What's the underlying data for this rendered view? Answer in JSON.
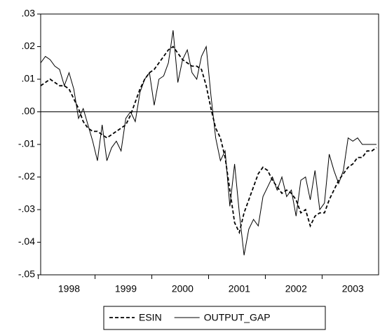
{
  "chart_data": {
    "type": "line",
    "categories": [
      null,
      null,
      null,
      null,
      null,
      null,
      "1998",
      null,
      null,
      null,
      null,
      null,
      null,
      null,
      null,
      null,
      null,
      null,
      "1999",
      null,
      null,
      null,
      null,
      null,
      null,
      null,
      null,
      null,
      null,
      null,
      "2000",
      null,
      null,
      null,
      null,
      null,
      null,
      null,
      null,
      null,
      null,
      null,
      "2001",
      null,
      null,
      null,
      null,
      null,
      null,
      null,
      null,
      null,
      null,
      null,
      "2002",
      null,
      null,
      null,
      null,
      null,
      null,
      null,
      null,
      null,
      null,
      null,
      "2003",
      null,
      null,
      null,
      null,
      null
    ],
    "series": [
      {
        "name": "ESIN",
        "color": "#000000",
        "dash": "dashed",
        "values": [
          0.008,
          0.009,
          0.01,
          0.009,
          0.008,
          0.008,
          0.007,
          0.004,
          0.001,
          -0.003,
          -0.005,
          -0.006,
          -0.006,
          -0.007,
          -0.008,
          -0.007,
          -0.006,
          -0.005,
          -0.004,
          -0.001,
          0.003,
          0.007,
          0.01,
          0.012,
          0.013,
          0.015,
          0.017,
          0.019,
          0.02,
          0.018,
          0.016,
          0.015,
          0.014,
          0.014,
          0.013,
          0.008,
          0.001,
          -0.005,
          -0.008,
          -0.014,
          -0.024,
          -0.034,
          -0.037,
          -0.031,
          -0.027,
          -0.023,
          -0.019,
          -0.017,
          -0.018,
          -0.021,
          -0.023,
          -0.025,
          -0.024,
          -0.025,
          -0.027,
          -0.031,
          -0.03,
          -0.035,
          -0.032,
          -0.031,
          -0.031,
          -0.027,
          -0.024,
          -0.021,
          -0.019,
          -0.017,
          -0.016,
          -0.014,
          -0.014,
          -0.012,
          -0.012,
          -0.011
        ]
      },
      {
        "name": "OUTPUT_GAP",
        "color": "#000000",
        "dash": "solid",
        "values": [
          0.015,
          0.017,
          0.016,
          0.014,
          0.013,
          0.008,
          0.012,
          0.007,
          -0.002,
          0.001,
          -0.004,
          -0.009,
          -0.015,
          -0.004,
          -0.015,
          -0.011,
          -0.009,
          -0.012,
          -0.002,
          0.0,
          -0.003,
          0.006,
          0.01,
          0.012,
          0.002,
          0.01,
          0.011,
          0.015,
          0.025,
          0.009,
          0.016,
          0.019,
          0.012,
          0.01,
          0.017,
          0.02,
          0.005,
          -0.008,
          -0.015,
          -0.012,
          -0.029,
          -0.016,
          -0.031,
          -0.044,
          -0.036,
          -0.033,
          -0.035,
          -0.026,
          -0.023,
          -0.02,
          -0.024,
          -0.02,
          -0.026,
          -0.024,
          -0.032,
          -0.021,
          -0.02,
          -0.027,
          -0.018,
          -0.03,
          -0.028,
          -0.013,
          -0.018,
          -0.022,
          -0.018,
          -0.008,
          -0.009,
          -0.008,
          -0.01,
          -0.01,
          -0.01,
          -0.01
        ]
      }
    ],
    "ylim": [
      -0.05,
      0.03
    ],
    "yticks": [
      {
        "value": -0.05,
        "label": "-.05"
      },
      {
        "value": -0.04,
        "label": "-.04"
      },
      {
        "value": -0.03,
        "label": "-.03"
      },
      {
        "value": -0.02,
        "label": "-.02"
      },
      {
        "value": -0.01,
        "label": "-.01"
      },
      {
        "value": 0,
        "label": ".00"
      },
      {
        "value": 0.01,
        "label": ".01"
      },
      {
        "value": 0.02,
        "label": ".02"
      },
      {
        "value": 0.03,
        "label": ".03"
      }
    ],
    "zero_line": true,
    "legend": "bottom"
  }
}
